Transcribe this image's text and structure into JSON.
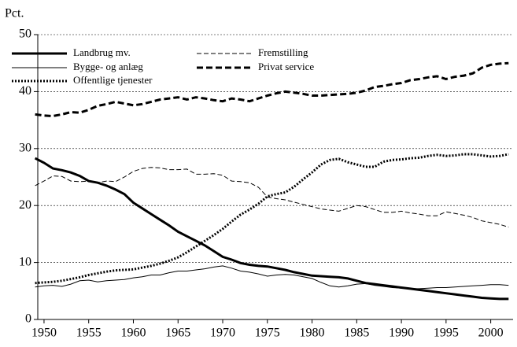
{
  "chart_data": {
    "type": "line",
    "y_label": "Pct.",
    "x": [
      1949,
      1950,
      1951,
      1952,
      1953,
      1954,
      1955,
      1956,
      1957,
      1958,
      1959,
      1960,
      1961,
      1962,
      1963,
      1964,
      1965,
      1966,
      1967,
      1968,
      1969,
      1970,
      1971,
      1972,
      1973,
      1974,
      1975,
      1976,
      1977,
      1978,
      1979,
      1980,
      1981,
      1982,
      1983,
      1984,
      1985,
      1986,
      1987,
      1988,
      1989,
      1990,
      1991,
      1992,
      1993,
      1994,
      1995,
      1996,
      1997,
      1998,
      1999,
      2000,
      2001,
      2002
    ],
    "series": [
      {
        "name": "Landbrug mv.",
        "color": "#000000",
        "style": "solid-thick",
        "values": [
          28.3,
          27.5,
          26.5,
          26.2,
          25.8,
          25.2,
          24.3,
          24.0,
          23.5,
          22.8,
          22.0,
          20.5,
          19.5,
          18.5,
          17.5,
          16.5,
          15.4,
          14.6,
          13.8,
          13.0,
          12.0,
          11.0,
          10.5,
          9.9,
          9.6,
          9.4,
          9.3,
          9.0,
          8.7,
          8.3,
          8.0,
          7.7,
          7.6,
          7.5,
          7.4,
          7.2,
          6.8,
          6.4,
          6.2,
          6.0,
          5.8,
          5.6,
          5.4,
          5.2,
          5.0,
          4.8,
          4.6,
          4.4,
          4.2,
          4.0,
          3.8,
          3.7,
          3.6,
          3.6
        ]
      },
      {
        "name": "Fremstilling",
        "color": "#000000",
        "style": "dashed-thin",
        "values": [
          23.5,
          24.3,
          25.2,
          25.1,
          24.3,
          24.2,
          24.3,
          24.0,
          24.3,
          24.2,
          25.0,
          26.0,
          26.5,
          26.7,
          26.6,
          26.3,
          26.3,
          26.4,
          25.5,
          25.5,
          25.6,
          25.3,
          24.3,
          24.2,
          24.0,
          23.2,
          21.5,
          21.2,
          21.0,
          20.6,
          20.2,
          19.8,
          19.4,
          19.2,
          19.0,
          19.5,
          20.0,
          19.8,
          19.3,
          18.8,
          18.8,
          19.0,
          18.7,
          18.5,
          18.2,
          18.2,
          18.9,
          18.6,
          18.3,
          17.9,
          17.3,
          17.0,
          16.7,
          16.2
        ]
      },
      {
        "name": "Bygge- og anlæg",
        "color": "#000000",
        "style": "solid-thin",
        "values": [
          5.7,
          5.9,
          6.0,
          5.8,
          6.2,
          6.8,
          6.9,
          6.6,
          6.8,
          6.9,
          7.0,
          7.3,
          7.5,
          7.8,
          7.8,
          8.2,
          8.5,
          8.5,
          8.7,
          8.9,
          9.2,
          9.4,
          9.0,
          8.5,
          8.3,
          8.0,
          7.6,
          7.8,
          7.9,
          7.8,
          7.5,
          7.2,
          6.5,
          5.9,
          5.7,
          5.9,
          6.2,
          6.3,
          6.0,
          5.8,
          5.6,
          5.5,
          5.4,
          5.4,
          5.5,
          5.6,
          5.6,
          5.7,
          5.8,
          5.9,
          6.0,
          6.1,
          6.1,
          6.0
        ]
      },
      {
        "name": "Privat service",
        "color": "#000000",
        "style": "dashed-thick",
        "values": [
          36.0,
          35.8,
          35.7,
          36.0,
          36.4,
          36.3,
          36.8,
          37.5,
          37.8,
          38.2,
          37.9,
          37.6,
          37.8,
          38.2,
          38.6,
          38.8,
          39.0,
          38.6,
          39.0,
          38.8,
          38.5,
          38.3,
          38.8,
          38.6,
          38.3,
          38.8,
          39.3,
          39.7,
          40.0,
          39.8,
          39.6,
          39.3,
          39.3,
          39.4,
          39.5,
          39.6,
          39.8,
          40.2,
          40.8,
          41.0,
          41.3,
          41.5,
          42.0,
          42.2,
          42.5,
          42.7,
          42.2,
          42.6,
          42.8,
          43.2,
          44.2,
          44.7,
          44.9,
          45.0
        ]
      },
      {
        "name": "Offentlige tjenester",
        "color": "#000000",
        "style": "dotted-thick",
        "values": [
          6.4,
          6.5,
          6.6,
          6.8,
          7.1,
          7.4,
          7.8,
          8.1,
          8.4,
          8.6,
          8.7,
          8.8,
          9.1,
          9.4,
          9.8,
          10.3,
          10.9,
          11.8,
          12.8,
          13.8,
          14.8,
          15.9,
          17.2,
          18.4,
          19.3,
          20.3,
          21.6,
          22.0,
          22.3,
          23.3,
          24.6,
          25.8,
          27.2,
          28.0,
          28.2,
          27.6,
          27.2,
          26.8,
          26.8,
          27.7,
          28.0,
          28.1,
          28.3,
          28.4,
          28.7,
          28.9,
          28.7,
          28.8,
          29.0,
          29.0,
          28.8,
          28.6,
          28.7,
          29.0
        ]
      }
    ],
    "xlim": [
      1949.3,
      2002.5
    ],
    "xticks": [
      1950,
      1955,
      1960,
      1965,
      1970,
      1975,
      1980,
      1985,
      1990,
      1995,
      2000
    ],
    "ylim": [
      0,
      50
    ],
    "yticks": [
      0,
      10,
      20,
      30,
      40,
      50
    ],
    "grid": true
  }
}
